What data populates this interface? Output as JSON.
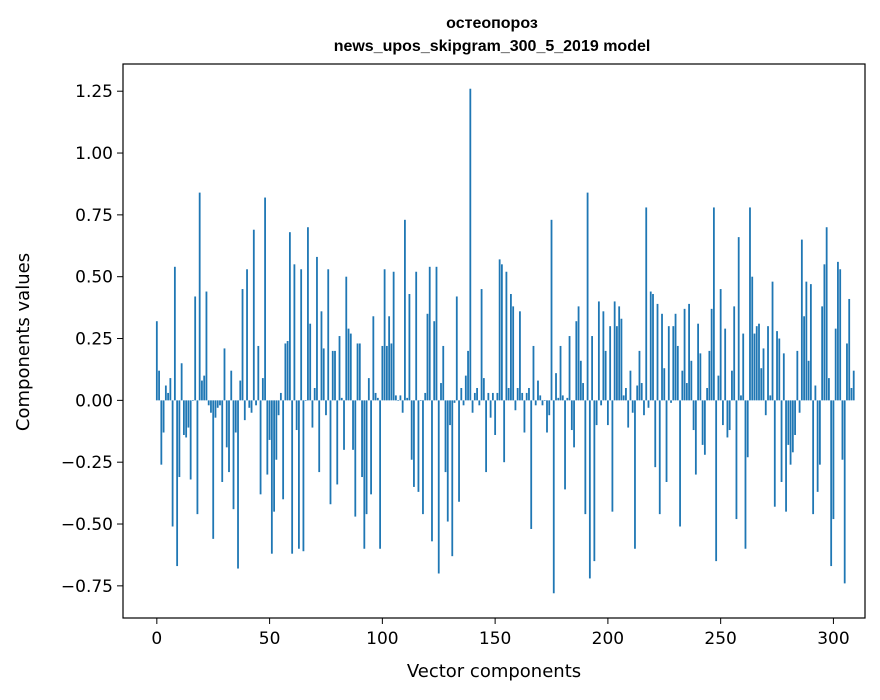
{
  "chart_data": {
    "type": "bar",
    "title": "остеопороз",
    "subtitle": "news_upos_skipgram_300_5_2019 model",
    "xlabel": "Vector components",
    "ylabel": "Components values",
    "xlim": [
      -15,
      314
    ],
    "ylim": [
      -0.88,
      1.36
    ],
    "x_ticks": [
      0,
      50,
      100,
      150,
      200,
      250,
      300
    ],
    "x_tick_labels": [
      "0",
      "50",
      "100",
      "150",
      "200",
      "250",
      "300"
    ],
    "y_ticks": [
      -0.75,
      -0.5,
      -0.25,
      0.0,
      0.25,
      0.5,
      0.75,
      1.0,
      1.25
    ],
    "y_tick_labels": [
      "−0.75",
      "−0.50",
      "−0.25",
      "0.00",
      "0.25",
      "0.50",
      "0.75",
      "1.00",
      "1.25"
    ],
    "grid": false,
    "legend": "none",
    "bar_color": "#1f77b4",
    "values": [
      0.32,
      0.12,
      -0.26,
      -0.13,
      0.06,
      0.03,
      0.09,
      -0.51,
      0.54,
      -0.67,
      -0.31,
      0.15,
      -0.14,
      -0.15,
      -0.11,
      -0.32,
      0.0,
      0.42,
      -0.46,
      0.84,
      0.08,
      0.1,
      0.44,
      -0.02,
      -0.05,
      -0.56,
      -0.07,
      -0.03,
      -0.02,
      -0.33,
      0.21,
      -0.19,
      -0.29,
      0.12,
      -0.44,
      -0.13,
      -0.68,
      0.08,
      0.45,
      -0.08,
      0.53,
      -0.03,
      -0.05,
      0.69,
      -0.02,
      0.22,
      -0.38,
      0.09,
      0.82,
      -0.3,
      -0.16,
      -0.62,
      -0.45,
      -0.24,
      -0.06,
      0.03,
      -0.4,
      0.23,
      0.24,
      0.68,
      -0.62,
      0.55,
      -0.12,
      -0.6,
      0.53,
      -0.61,
      0.0,
      0.7,
      0.31,
      -0.11,
      0.05,
      0.58,
      -0.29,
      0.36,
      0.21,
      -0.06,
      0.53,
      -0.42,
      0.2,
      0.2,
      -0.34,
      0.26,
      0.01,
      -0.2,
      0.5,
      0.29,
      0.27,
      -0.2,
      -0.47,
      0.23,
      0.23,
      -0.31,
      -0.6,
      -0.46,
      0.09,
      -0.38,
      0.34,
      0.03,
      0.01,
      -0.6,
      0.22,
      0.53,
      0.22,
      0.34,
      0.23,
      0.52,
      0.02,
      0.0,
      0.02,
      -0.05,
      0.73,
      0.01,
      0.43,
      -0.24,
      -0.35,
      0.52,
      -0.37,
      0.0,
      -0.46,
      0.03,
      0.35,
      0.54,
      -0.57,
      0.32,
      0.54,
      -0.7,
      0.07,
      0.22,
      -0.29,
      -0.49,
      -0.1,
      -0.63,
      -0.01,
      0.42,
      -0.41,
      0.05,
      -0.02,
      0.1,
      0.2,
      1.26,
      -0.05,
      0.03,
      0.05,
      -0.02,
      0.45,
      0.09,
      -0.29,
      0.03,
      -0.07,
      0.03,
      -0.14,
      0.03,
      0.57,
      0.55,
      -0.25,
      0.52,
      0.05,
      0.43,
      0.38,
      -0.04,
      0.05,
      0.36,
      0.03,
      -0.13,
      0.03,
      0.05,
      -0.52,
      0.22,
      -0.02,
      0.08,
      0.02,
      -0.02,
      0.0,
      -0.13,
      -0.06,
      0.73,
      -0.78,
      0.11,
      0.01,
      0.22,
      0.02,
      -0.36,
      0.01,
      0.26,
      -0.12,
      -0.19,
      0.32,
      0.38,
      0.16,
      0.07,
      -0.46,
      0.84,
      -0.72,
      0.26,
      -0.65,
      -0.1,
      0.4,
      -0.02,
      0.36,
      0.2,
      -0.1,
      0.3,
      -0.45,
      0.4,
      0.3,
      0.38,
      0.33,
      0.02,
      0.05,
      -0.11,
      0.12,
      -0.05,
      -0.6,
      0.06,
      0.2,
      0.07,
      -0.06,
      0.78,
      -0.03,
      0.44,
      0.43,
      -0.27,
      0.39,
      -0.46,
      0.35,
      0.13,
      -0.33,
      0.3,
      -0.01,
      0.3,
      0.35,
      0.22,
      -0.51,
      0.12,
      0.37,
      0.07,
      0.39,
      0.16,
      -0.12,
      -0.3,
      0.31,
      0.19,
      -0.18,
      -0.22,
      0.05,
      0.2,
      0.37,
      0.78,
      -0.65,
      0.1,
      0.45,
      -0.1,
      0.29,
      -0.15,
      -0.12,
      0.12,
      0.38,
      -0.48,
      0.66,
      0.02,
      0.27,
      -0.6,
      -0.23,
      0.78,
      0.5,
      0.27,
      0.3,
      0.31,
      0.13,
      0.21,
      -0.06,
      0.3,
      0.02,
      0.48,
      -0.43,
      0.28,
      0.25,
      -0.33,
      0.19,
      -0.45,
      -0.18,
      -0.26,
      -0.21,
      -0.14,
      0.2,
      -0.05,
      0.65,
      0.34,
      0.48,
      0.16,
      0.47,
      -0.46,
      0.06,
      -0.37,
      -0.26,
      0.38,
      0.55,
      0.7,
      0.09,
      -0.67,
      -0.48,
      0.29,
      0.56,
      0.53,
      -0.24,
      -0.74,
      0.23,
      0.41,
      0.05,
      0.12
    ]
  }
}
